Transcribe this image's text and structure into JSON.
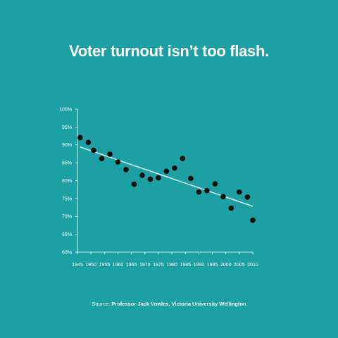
{
  "title": "Voter turnout isn’t too flash.",
  "source": {
    "prefix": "Source: ",
    "name": "Professor Jack Vowles, Victoria University Wellington"
  },
  "colors": {
    "background": "#1ca0a3",
    "points": "#0d0d0d",
    "trendline": "#d6eeee",
    "axis": "#ffffff",
    "text": "#ffffff"
  },
  "chart_data": {
    "type": "scatter",
    "title": "Voter turnout isn’t too flash.",
    "xlabel": "",
    "ylabel": "",
    "xlim": [
      1945,
      2010
    ],
    "ylim": [
      60,
      100
    ],
    "grid": false,
    "x_ticks": [
      "1945",
      "1950",
      "1955",
      "1960",
      "1965",
      "1970",
      "1975",
      "1980",
      "1985",
      "1990",
      "1995",
      "2000",
      "2005",
      "2010"
    ],
    "y_ticks": [
      "60%",
      "65%",
      "70%",
      "75%",
      "80%",
      "85%",
      "90%",
      "95%",
      "100%"
    ],
    "points": [
      {
        "x": 1946,
        "y": 92.0
      },
      {
        "x": 1949,
        "y": 90.7
      },
      {
        "x": 1951,
        "y": 88.5
      },
      {
        "x": 1954,
        "y": 86.2
      },
      {
        "x": 1957,
        "y": 87.4
      },
      {
        "x": 1960,
        "y": 85.2
      },
      {
        "x": 1963,
        "y": 83.1
      },
      {
        "x": 1966,
        "y": 79.0
      },
      {
        "x": 1969,
        "y": 81.5
      },
      {
        "x": 1972,
        "y": 80.4
      },
      {
        "x": 1975,
        "y": 80.8
      },
      {
        "x": 1978,
        "y": 82.6
      },
      {
        "x": 1981,
        "y": 83.5
      },
      {
        "x": 1984,
        "y": 86.2
      },
      {
        "x": 1987,
        "y": 80.6
      },
      {
        "x": 1990,
        "y": 76.8
      },
      {
        "x": 1993,
        "y": 77.2
      },
      {
        "x": 1996,
        "y": 79.1
      },
      {
        "x": 1999,
        "y": 75.5
      },
      {
        "x": 2002,
        "y": 72.3
      },
      {
        "x": 2005,
        "y": 76.8
      },
      {
        "x": 2008,
        "y": 75.4
      },
      {
        "x": 2010,
        "y": 68.9
      }
    ],
    "trendline": {
      "x": [
        1946,
        2010
      ],
      "y": [
        89.4,
        72.8
      ]
    }
  }
}
